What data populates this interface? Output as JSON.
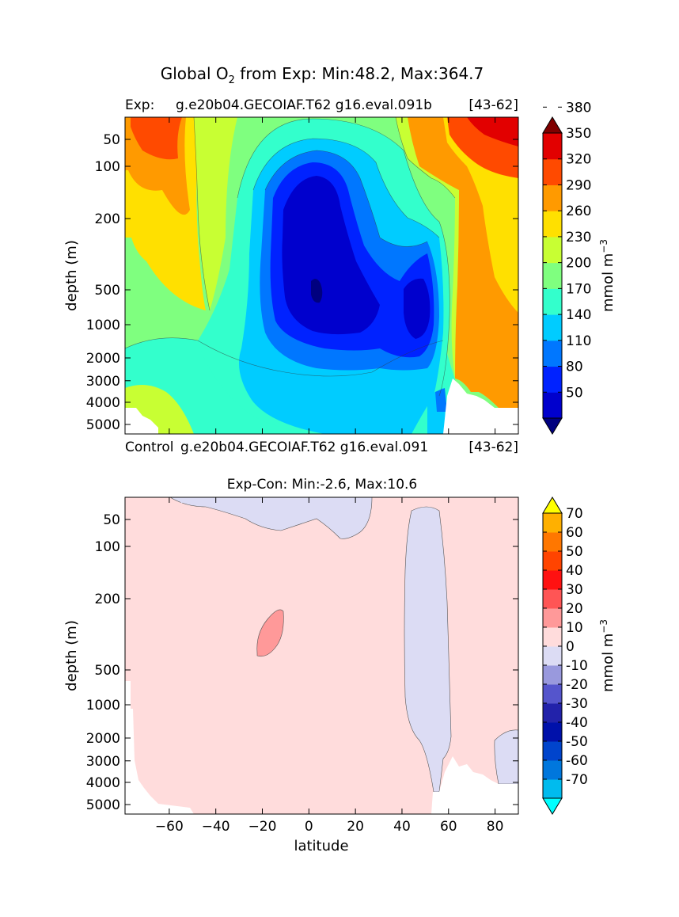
{
  "figure": {
    "suptitle": "Global O",
    "suptitle_sub": "2",
    "suptitle_rest": " from Exp: Min:48.2, Max:364.7"
  },
  "chart_data": [
    {
      "type": "heatmap",
      "panel": "top",
      "subtitle_left": "Exp:",
      "subtitle_center": "g.e20b04.GECOIAF.T62 g16.eval.091b",
      "subtitle_right": "[43-62]",
      "bottom_note_left": "Control",
      "bottom_note_center": "g.e20b04.GECOIAF.T62 g16.eval.091",
      "bottom_note_right": "[43-62]",
      "ylabel": "depth (m)",
      "xlabel": "",
      "xlim": [
        -79,
        90
      ],
      "y_ticks": [
        "50",
        "100",
        "200",
        "500",
        "1000",
        "2000",
        "3000",
        "4000",
        "5000"
      ],
      "y_tick_values": [
        50,
        100,
        200,
        500,
        1000,
        2000,
        3000,
        4000,
        5000
      ],
      "colorbar": {
        "label": "mmol m",
        "label_sup": "−3",
        "ticks": [
          "50",
          "80",
          "110",
          "140",
          "170",
          "200",
          "230",
          "260",
          "290",
          "320",
          "350",
          "380"
        ],
        "colors": [
          "#00007f",
          "#0000cd",
          "#0022ff",
          "#0077ff",
          "#00ccff",
          "#33ffcc",
          "#7fff7f",
          "#c8ff33",
          "#ffe000",
          "#ff9a00",
          "#ff4a00",
          "#e20000",
          "#7f0000"
        ],
        "extend": "both"
      }
    },
    {
      "type": "heatmap",
      "panel": "bottom",
      "title": "Exp-Con: Min:-2.6, Max:10.6",
      "ylabel": "depth (m)",
      "xlabel": "latitude",
      "xlim": [
        -79,
        90
      ],
      "x_ticks": [
        "−60",
        "−40",
        "−20",
        "0",
        "20",
        "40",
        "60",
        "80"
      ],
      "x_tick_values": [
        -60,
        -40,
        -20,
        0,
        20,
        40,
        60,
        80
      ],
      "y_ticks": [
        "50",
        "100",
        "200",
        "500",
        "1000",
        "2000",
        "3000",
        "4000",
        "5000"
      ],
      "y_tick_values": [
        50,
        100,
        200,
        500,
        1000,
        2000,
        3000,
        4000,
        5000
      ],
      "colorbar": {
        "label": "mmol m",
        "label_sup": "−3",
        "ticks": [
          "-70",
          "-60",
          "-50",
          "-40",
          "-30",
          "-20",
          "-10",
          "0",
          "10",
          "20",
          "30",
          "40",
          "50",
          "60",
          "70"
        ],
        "colors": [
          "#00ffff",
          "#00bbee",
          "#0077dd",
          "#0044cc",
          "#0011aa",
          "#2222aa",
          "#5555cc",
          "#9999dd",
          "#dcdcf4",
          "#ffdcdc",
          "#ff9999",
          "#ff5555",
          "#ff1111",
          "#ff4400",
          "#ff7700",
          "#ffb000",
          "#ffff00"
        ],
        "extend": "both"
      }
    }
  ]
}
